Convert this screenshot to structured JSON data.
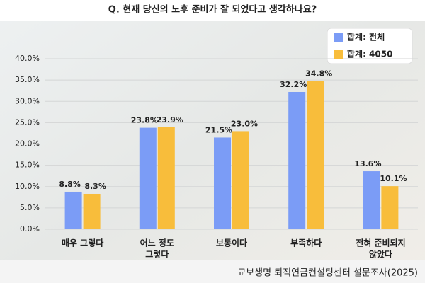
{
  "chart_data": {
    "type": "bar",
    "title": "Q. 현재 당신의 노후 준비가 잘 되었다고 생각하나요?",
    "source": "교보생명 퇴직연금컨설팅센터 설문조사(2025)",
    "categories": [
      [
        "매우 그렇다"
      ],
      [
        "어느 정도",
        "그렇다"
      ],
      [
        "보통이다"
      ],
      [
        "부족하다"
      ],
      [
        "전혀 준비되지",
        "않았다"
      ]
    ],
    "category_colors": [
      "#222222",
      "#222222",
      "#222222",
      "#d62b2b",
      "#d62b2b"
    ],
    "series": [
      {
        "name": "합계: 전체",
        "color": "#7b9cf6",
        "values": [
          8.8,
          23.8,
          21.5,
          32.2,
          13.6
        ],
        "value_labels": [
          "8.8%",
          "23.8%",
          "21.5%",
          "32.2%",
          "13.6%"
        ]
      },
      {
        "name": "합계: 4050",
        "color": "#f8bd3b",
        "values": [
          8.3,
          23.9,
          23.0,
          34.8,
          10.1
        ],
        "value_labels": [
          "8.3%",
          "23.9%",
          "23.0%",
          "34.8%",
          "10.1%"
        ]
      }
    ],
    "ylim": [
      0,
      40
    ],
    "yticks": [
      {
        "value": 0,
        "label": "0.0%"
      },
      {
        "value": 5,
        "label": "5.0%"
      },
      {
        "value": 10,
        "label": "10.0%"
      },
      {
        "value": 15,
        "label": "15.0%"
      },
      {
        "value": 20,
        "label": "20.0%"
      },
      {
        "value": 25,
        "label": "25.0%"
      },
      {
        "value": 30,
        "label": "30.0%"
      },
      {
        "value": 35,
        "label": "35.0%"
      },
      {
        "value": 40,
        "label": "40.0%"
      }
    ],
    "grid": true,
    "legend": "top-right"
  }
}
